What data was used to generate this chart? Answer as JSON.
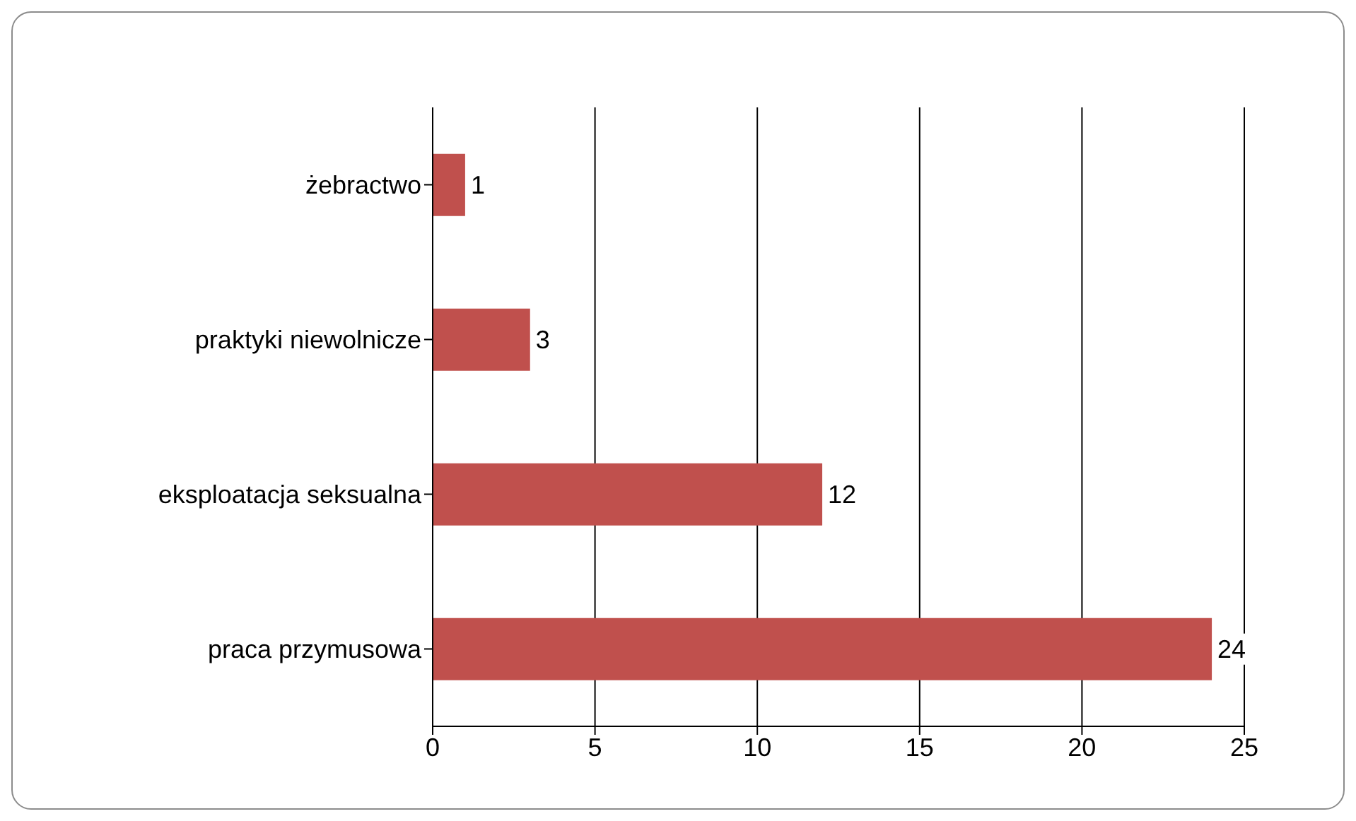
{
  "chart_data": {
    "type": "bar",
    "orientation": "horizontal",
    "categories": [
      "żebractwo",
      "praktyki niewolnicze",
      "eksploatacja seksualna",
      "praca przymusowa"
    ],
    "values": [
      1,
      3,
      12,
      24
    ],
    "color": "#c0504d",
    "xlim": [
      0,
      25
    ],
    "xticks": [
      0,
      5,
      10,
      15,
      20,
      25
    ],
    "grid": "x",
    "data_labels": true
  }
}
